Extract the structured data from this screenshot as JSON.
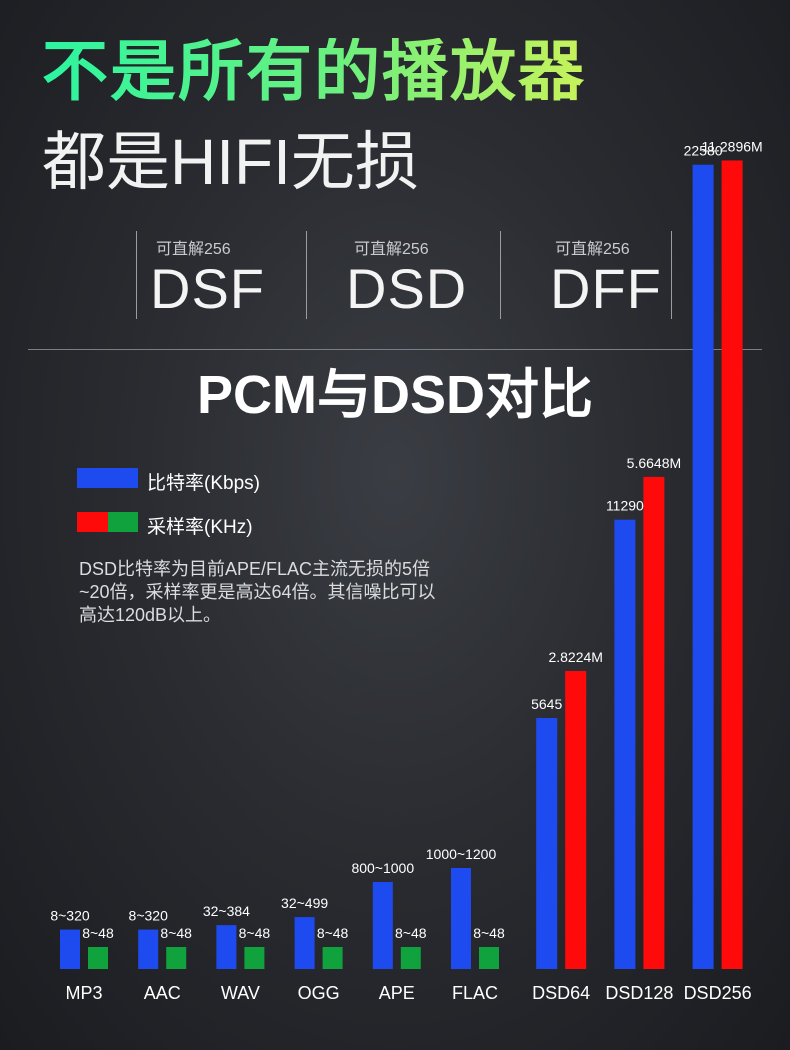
{
  "header": {
    "headline": "不是所有的播放器",
    "subheadline": "都是HIFI无损"
  },
  "formats": [
    {
      "caption": "可直解256",
      "name": "DSF"
    },
    {
      "caption": "可直解256",
      "name": "DSD"
    },
    {
      "caption": "可直解256",
      "name": "DFF"
    }
  ],
  "colors": {
    "bitrate": "#1e4bf0",
    "samplerate_dsd": "#ff0a0a",
    "samplerate_pcm": "#10a23c",
    "headline_gradient": [
      "#2cf5a0",
      "#c8f25a"
    ]
  },
  "chart_data": {
    "type": "bar",
    "title": "PCM与DSD对比",
    "legend": [
      {
        "label": "比特率(Kbps)",
        "swatch": "blue"
      },
      {
        "label": "采样率(KHz)",
        "swatch": "red-green"
      }
    ],
    "note": "DSD比特率为目前APE/FLAC主流无损的5倍~20倍，采样率更是高达64倍。其信噪比可以高达120dB以上。",
    "categories": [
      "MP3",
      "AAC",
      "WAV",
      "OGG",
      "APE",
      "FLAC",
      "DSD64",
      "DSD128",
      "DSD256"
    ],
    "series": [
      {
        "name": "比特率(Kbps)",
        "labels": [
          "8~320",
          "8~320",
          "32~384",
          "32~499",
          "800~1000",
          "1000~1200",
          "5645",
          "11290",
          "22580"
        ],
        "values": [
          320,
          320,
          384,
          499,
          1000,
          1200,
          5645,
          11290,
          22580
        ]
      },
      {
        "name": "采样率(KHz)",
        "labels": [
          "8~48",
          "8~48",
          "8~48",
          "8~48",
          "8~48",
          "8~48",
          "2.8224M",
          "5.6648M",
          "11.2896M"
        ],
        "values": [
          48,
          48,
          48,
          48,
          48,
          48,
          2822.4,
          5664.8,
          11289.6
        ]
      }
    ],
    "scale": "non-linear (illustrative)",
    "legend_position": "top-left",
    "grid": false
  }
}
